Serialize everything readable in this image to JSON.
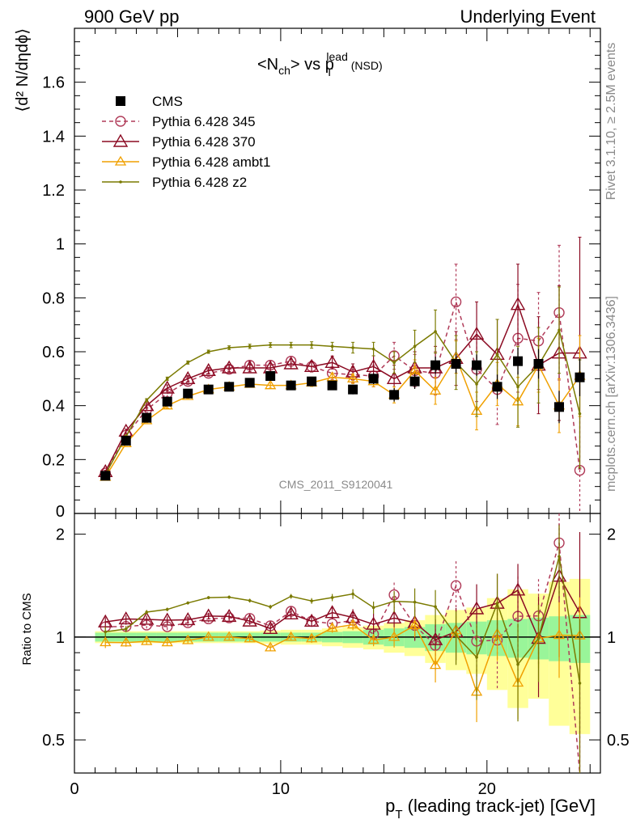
{
  "header": {
    "left": "900 GeV pp",
    "right": "Underlying Event"
  },
  "side_text": {
    "rivet": "Rivet 3.1.10, ≥ 2.5M events",
    "mcplots": "mcplots.cern.ch [arXiv:1306.3436]"
  },
  "watermark": "CMS_2011_S9120041",
  "chart_data": [
    {
      "type": "scatter",
      "title_parts": {
        "a": "<N",
        "b": "ch",
        "c": "> vs p",
        "d": "T",
        "e": "lead",
        "f": " (NSD)"
      },
      "ylabel": "⟨d² N/dηdϕ⟩",
      "ylim": [
        0,
        1.8
      ],
      "yticks": [
        "0.2",
        "0.4",
        "0.6",
        "0.8",
        "1",
        "1.2",
        "1.4",
        "1.6"
      ],
      "ytick_values": [
        0.2,
        0.4,
        0.6,
        0.8,
        1.0,
        1.2,
        1.4,
        1.6
      ],
      "ybottom_label": "0",
      "xlim": [
        0,
        25.5
      ],
      "x": [
        1.5,
        2.5,
        3.5,
        4.5,
        5.5,
        6.5,
        7.5,
        8.5,
        9.5,
        10.5,
        11.5,
        12.5,
        13.5,
        14.5,
        15.5,
        16.5,
        17.5,
        18.5,
        19.5,
        20.5,
        21.5,
        22.5,
        23.5,
        24.5
      ],
      "series": [
        {
          "name": "CMS",
          "color": "#000000",
          "values": [
            0.14,
            0.27,
            0.355,
            0.415,
            0.445,
            0.46,
            0.47,
            0.485,
            0.51,
            0.475,
            0.49,
            0.475,
            0.46,
            0.5,
            0.44,
            0.49,
            0.55,
            0.555,
            0.55,
            0.47,
            0.565,
            0.555,
            0.395,
            0.505
          ],
          "errors": [
            0.005,
            0.007,
            0.008,
            0.008,
            0.008,
            0.008,
            0.009,
            0.01,
            0.01,
            0.012,
            0.014,
            0.016,
            0.018,
            0.02,
            0.025,
            0.028,
            0.032,
            0.035,
            0.04,
            0.045,
            0.05,
            0.055,
            0.06,
            0.07
          ]
        },
        {
          "name": "Pythia 6.428 345",
          "color": "#b03a58",
          "values": [
            0.15,
            0.29,
            0.385,
            0.445,
            0.49,
            0.52,
            0.535,
            0.55,
            0.55,
            0.565,
            0.545,
            0.52,
            0.515,
            0.51,
            0.585,
            0.53,
            0.52,
            0.785,
            0.535,
            0.46,
            0.65,
            0.64,
            0.745,
            0.16
          ],
          "errors": [
            0.005,
            0.008,
            0.01,
            0.012,
            0.012,
            0.012,
            0.013,
            0.014,
            0.016,
            0.018,
            0.02,
            0.024,
            0.03,
            0.04,
            0.05,
            0.06,
            0.08,
            0.14,
            0.12,
            0.13,
            0.2,
            0.18,
            0.25,
            0.2
          ]
        },
        {
          "name": "Pythia 6.428 370",
          "color": "#8b0a22",
          "values": [
            0.155,
            0.305,
            0.4,
            0.465,
            0.5,
            0.53,
            0.54,
            0.54,
            0.54,
            0.555,
            0.545,
            0.56,
            0.525,
            0.545,
            0.5,
            0.54,
            0.54,
            0.575,
            0.665,
            0.59,
            0.775,
            0.55,
            0.595,
            0.595
          ],
          "errors": [
            0.005,
            0.008,
            0.01,
            0.012,
            0.012,
            0.012,
            0.013,
            0.014,
            0.016,
            0.018,
            0.02,
            0.024,
            0.03,
            0.04,
            0.05,
            0.06,
            0.08,
            0.1,
            0.12,
            0.13,
            0.15,
            0.18,
            0.25,
            0.43
          ]
        },
        {
          "name": "Pythia 6.428 ambt1",
          "color": "#f0a000",
          "values": [
            0.135,
            0.26,
            0.345,
            0.4,
            0.435,
            0.46,
            0.47,
            0.48,
            0.475,
            0.475,
            0.485,
            0.505,
            0.5,
            0.49,
            0.44,
            0.53,
            0.455,
            0.58,
            0.38,
            0.48,
            0.415,
            0.55,
            0.4,
            0.51
          ],
          "errors": [
            0.005,
            0.007,
            0.008,
            0.008,
            0.008,
            0.008,
            0.009,
            0.01,
            0.01,
            0.012,
            0.014,
            0.016,
            0.018,
            0.02,
            0.03,
            0.04,
            0.05,
            0.06,
            0.07,
            0.08,
            0.09,
            0.1,
            0.1,
            0.15
          ]
        },
        {
          "name": "Pythia 6.428 z2",
          "color": "#7a7a00",
          "values": [
            0.145,
            0.285,
            0.42,
            0.5,
            0.56,
            0.6,
            0.615,
            0.62,
            0.625,
            0.625,
            0.625,
            0.62,
            0.615,
            0.61,
            0.56,
            0.62,
            0.675,
            0.56,
            0.48,
            0.59,
            0.47,
            0.55,
            0.68,
            0.37
          ],
          "errors": [
            0.005,
            0.006,
            0.006,
            0.006,
            0.006,
            0.006,
            0.007,
            0.008,
            0.009,
            0.01,
            0.012,
            0.015,
            0.02,
            0.025,
            0.04,
            0.06,
            0.08,
            0.1,
            0.12,
            0.13,
            0.15,
            0.14,
            0.16,
            0.2
          ]
        }
      ]
    },
    {
      "type": "scatter",
      "ylabel": "Ratio to CMS",
      "ylim": [
        0.4,
        2.3
      ],
      "yscale": "log",
      "yticks_left": [
        "2",
        "1",
        "0.5"
      ],
      "yticks_right": [
        "2",
        "1",
        "0.5"
      ],
      "ytick_values": [
        2,
        1,
        0.5
      ],
      "xlabel": "p",
      "xlabel_sub": "T",
      "xlabel_rest": " (leading track-jet) [GeV]",
      "xticks": [
        "0",
        "10",
        "20"
      ],
      "xtick_values": [
        0,
        10,
        20
      ],
      "xlim": [
        0,
        25.5
      ],
      "band_inner_halfwidth": [
        0.03,
        0.03,
        0.03,
        0.03,
        0.03,
        0.03,
        0.03,
        0.03,
        0.03,
        0.03,
        0.03,
        0.035,
        0.04,
        0.05,
        0.06,
        0.07,
        0.09,
        0.1,
        0.11,
        0.12,
        0.13,
        0.14,
        0.15,
        0.16
      ],
      "band_outer_halfwidth": [
        0.04,
        0.04,
        0.04,
        0.04,
        0.04,
        0.04,
        0.04,
        0.04,
        0.045,
        0.05,
        0.05,
        0.06,
        0.07,
        0.08,
        0.1,
        0.12,
        0.16,
        0.2,
        0.22,
        0.3,
        0.38,
        0.34,
        0.45,
        0.48
      ],
      "band_inner_color": "#99f599",
      "band_outer_color": "#ffff99"
    }
  ]
}
